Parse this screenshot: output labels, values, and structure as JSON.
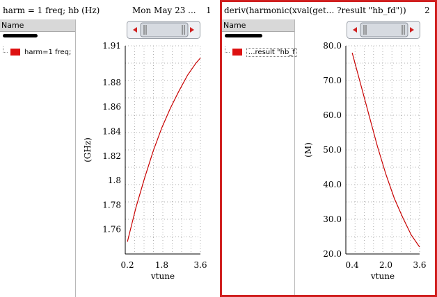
{
  "colors": {
    "trace": "#c80000",
    "swatch": "#dd1111",
    "selection_border": "#d02020",
    "grid": "#b0b0b0"
  },
  "panes": [
    {
      "title": "harm = 1 freq; hb (Hz)",
      "title_right": "Mon May 23  ...",
      "number": "1",
      "legend_header": "Name",
      "legend_item": "harm=1 freq;",
      "selected": false
    },
    {
      "title": "deriv(harmonic(xval(get...  ?result \"hb_fd\"))",
      "title_right": "",
      "number": "2",
      "legend_header": "Name",
      "legend_item": "...result \"hb_f",
      "selected": true
    }
  ],
  "chart_data": [
    {
      "type": "line",
      "title": "harm = 1 freq; hb (Hz)",
      "xlabel": "vtune",
      "ylabel": "(GHz)",
      "xlim": [
        0.1,
        3.6
      ],
      "ylim": [
        1.74,
        1.91
      ],
      "xticks": [
        "0.2",
        "1.8",
        "3.6"
      ],
      "yticks": [
        "1.76",
        "1.78",
        "1.8",
        "1.82",
        "1.84",
        "1.86",
        "1.88",
        "1.91"
      ],
      "grid": true,
      "series": [
        {
          "name": "harm=1 freq;",
          "x": [
            0.2,
            0.6,
            1.0,
            1.4,
            1.8,
            2.2,
            2.6,
            3.0,
            3.4,
            3.6
          ],
          "y": [
            1.75,
            1.778,
            1.802,
            1.824,
            1.843,
            1.859,
            1.873,
            1.886,
            1.896,
            1.9
          ]
        }
      ]
    },
    {
      "type": "line",
      "title": "deriv(harmonic(xval(get...  ?result \"hb_fd\"))",
      "xlabel": "vtune",
      "ylabel": "(M)",
      "xlim": [
        0.1,
        3.6
      ],
      "ylim": [
        20,
        80
      ],
      "xticks": [
        "0.4",
        "2.0",
        "3.6"
      ],
      "yticks": [
        "20.0",
        "30.0",
        "40.0",
        "50.0",
        "60.0",
        "70.0",
        "80.0"
      ],
      "grid": true,
      "series": [
        {
          "name": "...result \"hb_f",
          "x": [
            0.4,
            0.8,
            1.2,
            1.6,
            2.0,
            2.4,
            2.8,
            3.2,
            3.6
          ],
          "y": [
            78,
            69,
            60,
            51,
            43,
            36,
            30.5,
            25.5,
            22
          ]
        }
      ]
    }
  ]
}
